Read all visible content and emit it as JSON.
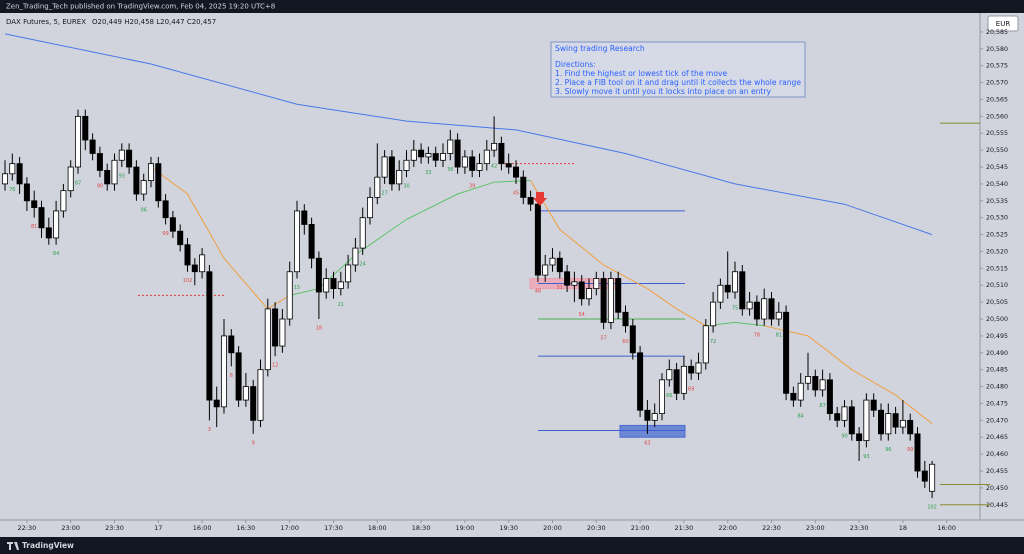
{
  "header": {
    "text": "Zen_Trading_Tech published on TradingView.com, Feb 04, 2025 19:20 UTC+8"
  },
  "footer": {
    "brand": "TradingView"
  },
  "chart_data": {
    "type": "candlestick",
    "title": "DAX Futures, 5, EUREX",
    "ohlc_header": "O20,449 H20,458 L20,447 C20,457",
    "currency": "EUR",
    "up_color": "#ffffff",
    "down_color": "#000000",
    "ylim": [
      20440.5,
      20590.6
    ],
    "yticks": [
      {
        "value": 20445,
        "label": "20,445"
      },
      {
        "value": 20450,
        "label": "20,450"
      },
      {
        "value": 20455,
        "label": "20,455"
      },
      {
        "value": 20460,
        "label": "20,460"
      },
      {
        "value": 20465,
        "label": "20,465"
      },
      {
        "value": 20470,
        "label": "20,470"
      },
      {
        "value": 20475,
        "label": "20,475"
      },
      {
        "value": 20480,
        "label": "20,480"
      },
      {
        "value": 20485,
        "label": "20,485"
      },
      {
        "value": 20490,
        "label": "20,490"
      },
      {
        "value": 20495,
        "label": "20,495"
      },
      {
        "value": 20500,
        "label": "20,500"
      },
      {
        "value": 20505,
        "label": "20,505"
      },
      {
        "value": 20510,
        "label": "20,510"
      },
      {
        "value": 20515,
        "label": "20,515"
      },
      {
        "value": 20520,
        "label": "20,520"
      },
      {
        "value": 20525,
        "label": "20,525"
      },
      {
        "value": 20530,
        "label": "20,530"
      },
      {
        "value": 20535,
        "label": "20,535"
      },
      {
        "value": 20540,
        "label": "20,540"
      },
      {
        "value": 20545,
        "label": "20,545"
      },
      {
        "value": 20550,
        "label": "20,550"
      },
      {
        "value": 20555,
        "label": "20,555"
      },
      {
        "value": 20560,
        "label": "20,560"
      },
      {
        "value": 20565,
        "label": "20,565"
      },
      {
        "value": 20570,
        "label": "20,570"
      },
      {
        "value": 20575,
        "label": "20,575"
      },
      {
        "value": 20580,
        "label": "20,580"
      },
      {
        "value": 20585,
        "label": "20,585"
      }
    ],
    "xticks": [
      {
        "value": 3,
        "label": "22:30"
      },
      {
        "value": 9,
        "label": "23:00"
      },
      {
        "value": 15,
        "label": "23:30"
      },
      {
        "value": 21,
        "label": "17"
      },
      {
        "value": 27,
        "label": "16:00"
      },
      {
        "value": 33,
        "label": "16:30"
      },
      {
        "value": 39,
        "label": "17:00"
      },
      {
        "value": 45,
        "label": "17:30"
      },
      {
        "value": 51,
        "label": "18:00"
      },
      {
        "value": 57,
        "label": "18:30"
      },
      {
        "value": 63,
        "label": "19:00"
      },
      {
        "value": 69,
        "label": "19:30"
      },
      {
        "value": 75,
        "label": "20:00"
      },
      {
        "value": 81,
        "label": "20:30"
      },
      {
        "value": 87,
        "label": "21:00"
      },
      {
        "value": 93,
        "label": "21:30"
      },
      {
        "value": 99,
        "label": "22:00"
      },
      {
        "value": 105,
        "label": "22:30"
      },
      {
        "value": 111,
        "label": "23:00"
      },
      {
        "value": 117,
        "label": "23:30"
      },
      {
        "value": 123,
        "label": "18"
      },
      {
        "value": 129,
        "label": "16:00"
      }
    ],
    "candles": [
      [
        20540,
        20547,
        20538,
        20543
      ],
      [
        20543,
        20549,
        20541,
        20546
      ],
      [
        20546,
        20548,
        20537,
        20540
      ],
      [
        20540,
        20542,
        20532,
        20535
      ],
      [
        20535,
        20538,
        20530,
        20533
      ],
      [
        20533,
        20535,
        20524,
        20527
      ],
      [
        20527,
        20530,
        20522,
        20524
      ],
      [
        20524,
        20535,
        20522,
        20532
      ],
      [
        20532,
        20540,
        20530,
        20538
      ],
      [
        20538,
        20547,
        20536,
        20545
      ],
      [
        20545,
        20562,
        20543,
        20560
      ],
      [
        20560,
        20562,
        20550,
        20553
      ],
      [
        20553,
        20555,
        20547,
        20549
      ],
      [
        20549,
        20551,
        20542,
        20544
      ],
      [
        20544,
        20546,
        20538,
        20540
      ],
      [
        20540,
        20549,
        20538,
        20547
      ],
      [
        20547,
        20552,
        20545,
        20550
      ],
      [
        20550,
        20552,
        20543,
        20545
      ],
      [
        20545,
        20547,
        20535,
        20537
      ],
      [
        20537,
        20543,
        20535,
        20541
      ],
      [
        20541,
        20548,
        20539,
        20546
      ],
      [
        20546,
        20548,
        20533,
        20535
      ],
      [
        20535,
        20537,
        20528,
        20530
      ],
      [
        20530,
        20532,
        20524,
        20526
      ],
      [
        20526,
        20528,
        20520,
        20522
      ],
      [
        20522,
        20524,
        20514,
        20516
      ],
      [
        20516,
        20518,
        20510,
        20514
      ],
      [
        20514,
        20521,
        20512,
        20519
      ],
      [
        20514,
        20516,
        20470,
        20476
      ],
      [
        20476,
        20480,
        20468,
        20474
      ],
      [
        20474,
        20500,
        20472,
        20495
      ],
      [
        20495,
        20497,
        20486,
        20490
      ],
      [
        20490,
        20492,
        20474,
        20476
      ],
      [
        20476,
        20484,
        20474,
        20480
      ],
      [
        20480,
        20482,
        20466,
        20470
      ],
      [
        20470,
        20488,
        20468,
        20485
      ],
      [
        20485,
        20506,
        20483,
        20503
      ],
      [
        20503,
        20505,
        20489,
        20492
      ],
      [
        20492,
        20503,
        20490,
        20500
      ],
      [
        20500,
        20517,
        20498,
        20514
      ],
      [
        20514,
        20535,
        20512,
        20532
      ],
      [
        20532,
        20534,
        20525,
        20528
      ],
      [
        20528,
        20530,
        20515,
        20518
      ],
      [
        20518,
        20520,
        20500,
        20508
      ],
      [
        20508,
        20515,
        20506,
        20512
      ],
      [
        20512,
        20514,
        20506,
        20509
      ],
      [
        20509,
        20514,
        20507,
        20511
      ],
      [
        20511,
        20519,
        20509,
        20516
      ],
      [
        20516,
        20524,
        20514,
        20521
      ],
      [
        20521,
        20533,
        20519,
        20530
      ],
      [
        20530,
        20539,
        20528,
        20536
      ],
      [
        20536,
        20552,
        20534,
        20542
      ],
      [
        20542,
        20550,
        20540,
        20548
      ],
      [
        20548,
        20550,
        20538,
        20540
      ],
      [
        20540,
        20547,
        20538,
        20544
      ],
      [
        20544,
        20550,
        20542,
        20547
      ],
      [
        20547,
        20553,
        20545,
        20550
      ],
      [
        20550,
        20552,
        20546,
        20548
      ],
      [
        20548,
        20551,
        20546,
        20549
      ],
      [
        20549,
        20551,
        20545,
        20547
      ],
      [
        20547,
        20552,
        20545,
        20549
      ],
      [
        20549,
        20556,
        20547,
        20553
      ],
      [
        20553,
        20555,
        20543,
        20545
      ],
      [
        20545,
        20550,
        20543,
        20548
      ],
      [
        20548,
        20550,
        20542,
        20544
      ],
      [
        20544,
        20549,
        20542,
        20546
      ],
      [
        20546,
        20553,
        20544,
        20550
      ],
      [
        20550,
        20560,
        20548,
        20552
      ],
      [
        20552,
        20554,
        20544,
        20546
      ],
      [
        20546,
        20549,
        20543,
        20545
      ],
      [
        20545,
        20547,
        20540,
        20542
      ],
      [
        20542,
        20544,
        20534,
        20536
      ],
      [
        20536,
        20538,
        20532,
        20534
      ],
      [
        20534,
        20536,
        20511,
        20513
      ],
      [
        20513,
        20519,
        20511,
        20516
      ],
      [
        20516,
        20521,
        20514,
        20518
      ],
      [
        20518,
        20520,
        20512,
        20514
      ],
      [
        20514,
        20516,
        20508,
        20510
      ],
      [
        20510,
        20514,
        20505,
        20511
      ],
      [
        20511,
        20513,
        20504,
        20506
      ],
      [
        20506,
        20512,
        20504,
        20509
      ],
      [
        20509,
        20514,
        20507,
        20512
      ],
      [
        20512,
        20514,
        20497,
        20499
      ],
      [
        20499,
        20514,
        20497,
        20512
      ],
      [
        20512,
        20514,
        20500,
        20502
      ],
      [
        20502,
        20504,
        20496,
        20498
      ],
      [
        20498,
        20500,
        20488,
        20490
      ],
      [
        20490,
        20492,
        20471,
        20473
      ],
      [
        20473,
        20476,
        20466,
        20470
      ],
      [
        20470,
        20475,
        20468,
        20472
      ],
      [
        20472,
        20484,
        20470,
        20482
      ],
      [
        20482,
        20488,
        20480,
        20485
      ],
      [
        20485,
        20487,
        20476,
        20478
      ],
      [
        20478,
        20489,
        20476,
        20486
      ],
      [
        20486,
        20488,
        20482,
        20484
      ],
      [
        20484,
        20490,
        20482,
        20487
      ],
      [
        20487,
        20500,
        20485,
        20498
      ],
      [
        20498,
        20508,
        20496,
        20505
      ],
      [
        20505,
        20512,
        20503,
        20510
      ],
      [
        20510,
        20520,
        20506,
        20508
      ],
      [
        20508,
        20517,
        20506,
        20514
      ],
      [
        20514,
        20516,
        20501,
        20503
      ],
      [
        20503,
        20508,
        20501,
        20505
      ],
      [
        20505,
        20507,
        20498,
        20500
      ],
      [
        20500,
        20509,
        20498,
        20506
      ],
      [
        20506,
        20508,
        20498,
        20500
      ],
      [
        20500,
        20505,
        20498,
        20502
      ],
      [
        20502,
        20504,
        20476,
        20478
      ],
      [
        20478,
        20480,
        20474,
        20476
      ],
      [
        20476,
        20484,
        20474,
        20481
      ],
      [
        20481,
        20490,
        20479,
        20483
      ],
      [
        20483,
        20485,
        20477,
        20479
      ],
      [
        20479,
        20485,
        20477,
        20482
      ],
      [
        20482,
        20484,
        20470,
        20472
      ],
      [
        20472,
        20474,
        20468,
        20470
      ],
      [
        20470,
        20476,
        20468,
        20474
      ],
      [
        20474,
        20476,
        20464,
        20466
      ],
      [
        20466,
        20468,
        20458,
        20464
      ],
      [
        20464,
        20478,
        20462,
        20476
      ],
      [
        20476,
        20478,
        20471,
        20473
      ],
      [
        20473,
        20475,
        20464,
        20466
      ],
      [
        20466,
        20475,
        20464,
        20472
      ],
      [
        20472,
        20474,
        20466,
        20468
      ],
      [
        20468,
        20476,
        20466,
        20470
      ],
      [
        20470,
        20472,
        20464,
        20466
      ],
      [
        20466,
        20468,
        20453,
        20455
      ],
      [
        20455,
        20458,
        20450,
        20452
      ],
      [
        20449,
        20458,
        20447,
        20457
      ]
    ],
    "candle_labels": [
      null,
      "76",
      null,
      null,
      "81",
      null,
      null,
      "84",
      null,
      null,
      "87",
      null,
      null,
      "90",
      null,
      null,
      "93",
      null,
      null,
      "96",
      null,
      null,
      "99",
      null,
      null,
      "102",
      null,
      null,
      "3",
      null,
      null,
      "6",
      null,
      null,
      "9",
      null,
      null,
      "12",
      null,
      null,
      "15",
      null,
      null,
      "18",
      null,
      null,
      "21",
      null,
      null,
      "24",
      null,
      null,
      "27",
      null,
      null,
      "30",
      null,
      null,
      "33",
      null,
      null,
      "36",
      null,
      null,
      "39",
      null,
      null,
      "42",
      null,
      null,
      "45",
      null,
      null,
      "48",
      null,
      null,
      "51",
      null,
      null,
      "54",
      null,
      null,
      "57",
      null,
      null,
      "60",
      null,
      null,
      "63",
      null,
      null,
      "66",
      null,
      null,
      "69",
      null,
      null,
      "72",
      null,
      null,
      "75",
      null,
      null,
      "78",
      null,
      null,
      "81",
      null,
      null,
      "84",
      null,
      null,
      "87",
      null,
      null,
      "90",
      null,
      null,
      "93",
      null,
      null,
      "96",
      null,
      null,
      "99",
      null,
      null,
      "102"
    ],
    "moving_averages": [
      {
        "color": "#4a78e8",
        "x": [
          0,
          20,
          40,
          55,
          70,
          85,
          100,
          115,
          127
        ],
        "values": [
          20584.4,
          20575.5,
          20563.6,
          20558.6,
          20556,
          20549,
          20540,
          20534,
          20525
        ]
      },
      {
        "color": "#f0a040",
        "x": [
          20,
          25,
          30,
          36,
          39
        ],
        "values": [
          20545,
          20537,
          20518,
          20503,
          20507
        ]
      },
      {
        "color": "#5cc46a",
        "x": [
          39,
          43,
          48,
          55,
          62,
          67,
          72
        ],
        "values": [
          20507,
          20509,
          20519,
          20529.5,
          20537,
          20540.5,
          20541
        ]
      },
      {
        "color": "#f0a040",
        "x": [
          72,
          76,
          82,
          88,
          92,
          96
        ],
        "values": [
          20541,
          20526.5,
          20516,
          20509,
          20503,
          20498
        ]
      },
      {
        "color": "#5cc46a",
        "x": [
          96,
          100,
          104
        ],
        "values": [
          20498,
          20499,
          20498
        ]
      },
      {
        "color": "#f0a040",
        "x": [
          104,
          110,
          116,
          122,
          127
        ],
        "values": [
          20498,
          20495,
          20485,
          20477.5,
          20469
        ]
      }
    ],
    "levels": [
      {
        "value": 20532,
        "color": "#3d5fd0",
        "style": "solid"
      },
      {
        "value": 20510.5,
        "color": "#3d5fd0",
        "style": "solid"
      },
      {
        "value": 20500,
        "color": "#4caf50",
        "style": "solid"
      },
      {
        "value": 20489,
        "color": "#3d5fd0",
        "style": "solid"
      },
      {
        "value": 20467,
        "color": "#3d5fd0",
        "style": "solid"
      },
      {
        "value": 20546,
        "color": "#e04040",
        "style": "dotted"
      },
      {
        "value": 20507,
        "color": "#e04040",
        "style": "dotted"
      },
      {
        "value": 20558,
        "color": "#8a8a30",
        "style": "solid"
      },
      {
        "value": 20451,
        "color": "#8a8a30",
        "style": "solid"
      },
      {
        "value": 20445,
        "color": "#8a8a30",
        "style": "solid"
      }
    ],
    "zones": [
      {
        "values": [
          20512,
          20509
        ],
        "color": "#f0a0b0"
      },
      {
        "values": [
          20468.5,
          20465
        ],
        "color": "#4a6ed0"
      }
    ],
    "annotation": {
      "title": "Swing trading Research",
      "lines": [
        "Directions:",
        "1. Find the highest or lowest tick of the move",
        "2. Place a FIB tool on it and drag until it collects the whole range",
        "3. Slowly move it until you it locks into place on an entry"
      ]
    }
  }
}
